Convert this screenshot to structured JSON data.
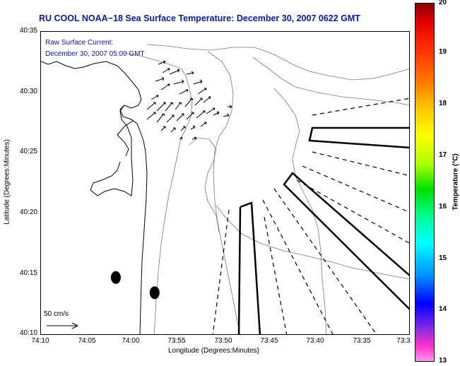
{
  "title": "RU COOL  NOAA−18  Sea Surface Temperature:  December 30, 2007 0622 GMT",
  "current": {
    "label": "Raw Surface Current:",
    "time": "December 30, 2007 05:00 GMT",
    "scale_label": "50 cm/s"
  },
  "axes": {
    "xlabel": "Longitude (Degrees:Minutes)",
    "ylabel": "Latitude (Degrees:Minutes)",
    "lon_ticks": [
      "74:10",
      "74:05",
      "74:00",
      "73:55",
      "73:50",
      "73:45",
      "73:40",
      "73:35",
      "73:3"
    ],
    "lat_ticks": [
      "40:35",
      "40:30",
      "40:25",
      "40:20",
      "40:15",
      "40:10"
    ]
  },
  "colorbar": {
    "label": "Temperature (°C)",
    "ticks": [
      "20",
      "19",
      "18",
      "17",
      "16",
      "15",
      "14",
      "13"
    ],
    "min": 13,
    "max": 20
  },
  "map": {
    "markers": [
      {
        "name": "buoy-west",
        "lon_deg": -74.0317,
        "lat_deg": 40.2464
      },
      {
        "name": "buoy-east",
        "lon_deg": -73.9617,
        "lat_deg": 40.2255
      }
    ]
  }
}
